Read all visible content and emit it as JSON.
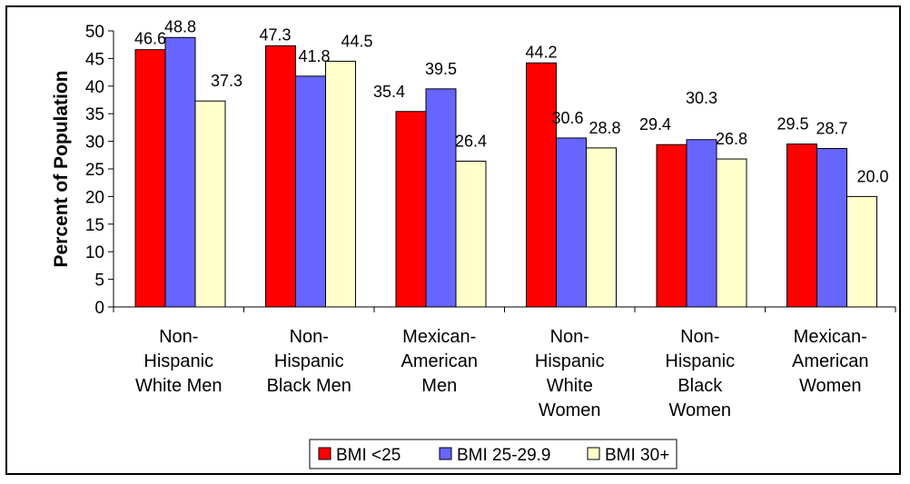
{
  "chart_data": {
    "type": "bar",
    "title": "",
    "xlabel": "",
    "ylabel": "Percent of Population",
    "ylim": [
      0,
      50
    ],
    "yticks": [
      0,
      5,
      10,
      15,
      20,
      25,
      30,
      35,
      40,
      45,
      50
    ],
    "grid": false,
    "legend_position": "bottom",
    "categories": [
      [
        "Non-",
        "Hispanic",
        "White Men"
      ],
      [
        "Non-",
        "Hispanic",
        "Black Men"
      ],
      [
        "Mexican-",
        "American",
        "Men"
      ],
      [
        "Non-",
        "Hispanic",
        "White",
        "Women"
      ],
      [
        "Non-",
        "Hispanic",
        "Black",
        "Women"
      ],
      [
        "Mexican-",
        "American",
        "Women"
      ]
    ],
    "series": [
      {
        "name": "BMI <25",
        "color": "#ff0000",
        "values": [
          46.6,
          47.3,
          35.4,
          44.2,
          29.4,
          29.5
        ],
        "labels": [
          "46.6",
          "47.3",
          "35.4",
          "44.2",
          "29.4",
          "29.5"
        ]
      },
      {
        "name": "BMI 25-29.9",
        "color": "#6666ff",
        "values": [
          48.8,
          41.8,
          39.5,
          30.6,
          30.3,
          28.7
        ],
        "labels": [
          "48.8",
          "41.8",
          "39.5",
          "30.6",
          "30.3",
          "28.7"
        ]
      },
      {
        "name": "BMI 30+",
        "color": "#ffffcc",
        "values": [
          37.3,
          44.5,
          26.4,
          28.8,
          26.8,
          20.0
        ],
        "labels": [
          "37.3",
          "44.5",
          "26.4",
          "28.8",
          "26.8",
          "20.0"
        ]
      }
    ]
  }
}
